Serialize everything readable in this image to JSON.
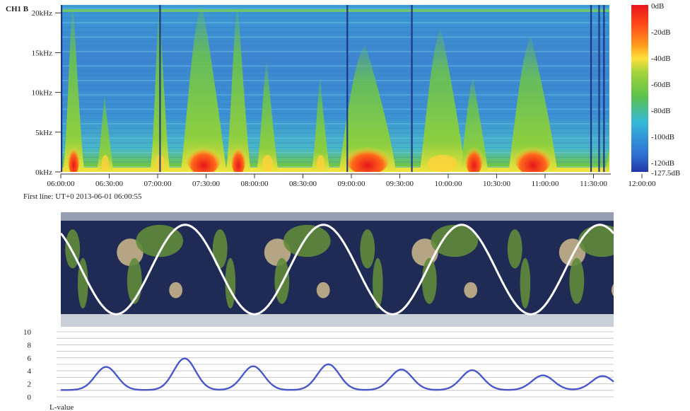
{
  "chart_data": [
    {
      "type": "heatmap",
      "title": "CH1 B",
      "y_ticks": [
        "0kHz",
        "5kHz",
        "10kHz",
        "15kHz",
        "20kHz"
      ],
      "y_values": [
        0,
        5,
        10,
        15,
        20
      ],
      "ylim": [
        0,
        21
      ],
      "x_ticks": [
        "06:00:00",
        "06:30:00",
        "07:00:00",
        "07:30:00",
        "08:00:00",
        "08:30:00",
        "09:00:00",
        "09:30:00",
        "10:00:00",
        "10:30:00",
        "11:00:00",
        "11:30:00",
        "12:00:00"
      ],
      "colorbar_labels": [
        "0dB",
        "-20dB",
        "-40dB",
        "-60dB",
        "-80dB",
        "-100dB",
        "-120dB",
        "-127.5dB"
      ],
      "colorbar_values": [
        0,
        -20,
        -40,
        -60,
        -80,
        -100,
        -120,
        -127.5
      ],
      "colorscale": [
        "#e8161b",
        "#ff4a1a",
        "#ff9a1c",
        "#ffe23a",
        "#a6d33c",
        "#5bc24b",
        "#35b9d8",
        "#2f6fd2",
        "#2237a8"
      ],
      "bursts": [
        {
          "start": "06:04",
          "end": "06:12",
          "max_khz": 21,
          "peak": "red"
        },
        {
          "start": "06:25",
          "end": "06:30",
          "max_khz": 10,
          "peak": "yellow"
        },
        {
          "start": "06:58",
          "end": "07:05",
          "max_khz": 21,
          "peak": "yellow"
        },
        {
          "start": "07:17",
          "end": "07:40",
          "max_khz": 21,
          "peak": "red"
        },
        {
          "start": "07:45",
          "end": "07:55",
          "max_khz": 21,
          "peak": "red"
        },
        {
          "start": "08:04",
          "end": "08:12",
          "max_khz": 14,
          "peak": "yellow"
        },
        {
          "start": "08:38",
          "end": "08:44",
          "max_khz": 12,
          "peak": "yellow"
        },
        {
          "start": "08:55",
          "end": "09:25",
          "max_khz": 16,
          "peak": "red"
        },
        {
          "start": "09:45",
          "end": "10:08",
          "max_khz": 18,
          "peak": "yellow"
        },
        {
          "start": "10:10",
          "end": "10:22",
          "max_khz": 12,
          "peak": "red"
        },
        {
          "start": "10:40",
          "end": "11:05",
          "max_khz": 17,
          "peak": "red"
        },
        {
          "start": "11:40",
          "end": "11:50",
          "max_khz": 7,
          "peak": "yellow"
        }
      ],
      "first_line": "First line: UT+0 2013-06-01 06:00:55"
    },
    {
      "type": "line",
      "description_kind": "satellite ground track over world map",
      "ground_track": {
        "cycles": 4,
        "x_start_phase": 0.35,
        "amplitude_fraction": 0.39,
        "color": "#ffffff"
      },
      "map_colors": {
        "ocean": "#1f2a55",
        "land": "#5f8a3a",
        "desert": "#c7b38a",
        "ice": "#e8ecef"
      }
    },
    {
      "type": "line",
      "xlabel": "L-value",
      "y_ticks": [
        "0",
        "2",
        "4",
        "6",
        "8",
        "10"
      ],
      "ylim": [
        0,
        10
      ],
      "series": [
        {
          "x": [
            0,
            0.05,
            0.09,
            0.12,
            0.135,
            0.15,
            0.165,
            0.18,
            0.21,
            0.26,
            0.3,
            0.33,
            0.345,
            0.36,
            0.375,
            0.39,
            0.42,
            0.47,
            0.51,
            0.54,
            0.555,
            0.57,
            0.585,
            0.6,
            0.63,
            0.68,
            0.72,
            0.75,
            0.765,
            0.78,
            0.795,
            0.81,
            0.84,
            0.89,
            0.93,
            0.96,
            0.975,
            0.99,
            1.0
          ],
          "values": [
            1.2,
            1.1,
            1.6,
            3.2,
            4.4,
            4.6,
            3.6,
            2.2,
            1.2,
            1.1,
            1.5,
            3.4,
            4.5,
            4.7,
            3.8,
            2.3,
            1.2,
            1.1,
            1.6,
            3.5,
            4.6,
            4.8,
            3.8,
            2.3,
            1.2,
            1.1,
            1.5,
            3.0,
            3.9,
            3.8,
            3.0,
            1.9,
            1.2,
            1.1,
            1.5,
            2.6,
            3.0,
            3.1,
            3.1
          ],
          "peaks_x": [
            0.082,
            0.224,
            0.348,
            0.484,
            0.616,
            0.744,
            0.872,
            0.98
          ],
          "peaks_y": [
            4.6,
            5.9,
            4.7,
            5.0,
            4.2,
            4.1,
            3.3,
            3.2
          ],
          "color": "#4a57c9"
        }
      ]
    }
  ]
}
